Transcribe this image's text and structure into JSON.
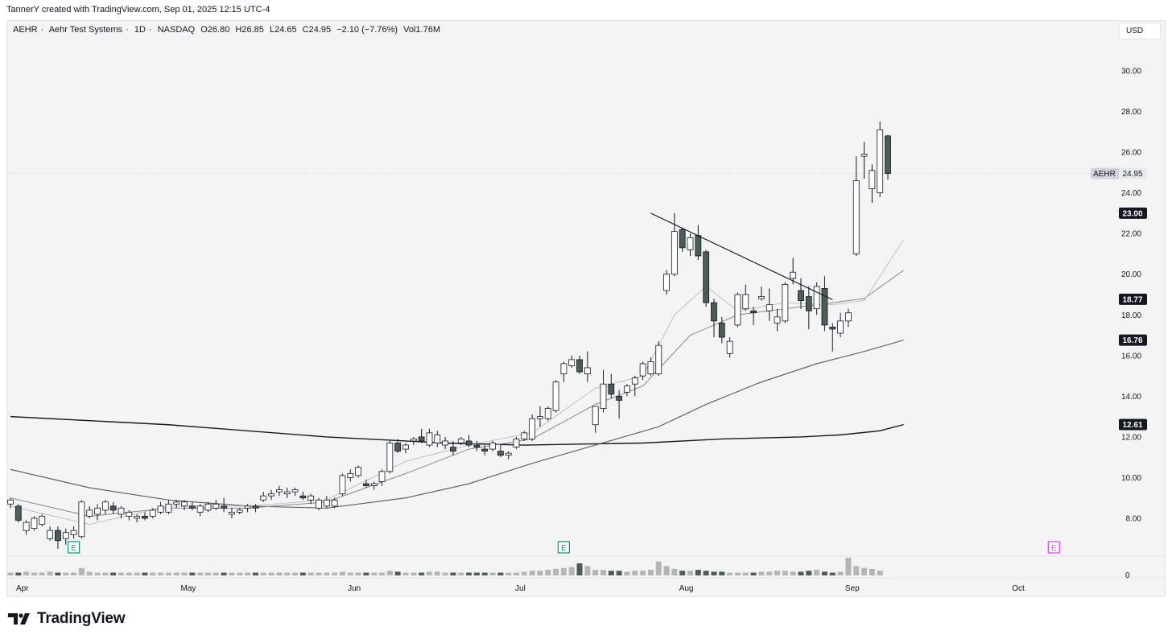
{
  "header": {
    "credit": "TannerY created with TradingView.com, Sep 01, 2025 12:15 UTC-4"
  },
  "legend": {
    "symbol": "AEHR",
    "name": "Aehr Test Systems",
    "timeframe": "1D",
    "exchange": "NASDAQ",
    "open": "O26.80",
    "high": "H26.85",
    "low": "L24.65",
    "close": "C24.95",
    "change": "−2.10 (−7.76%)",
    "volume": "Vol1.76M",
    "separator": "·"
  },
  "currency": "USD",
  "footer": {
    "brand": "TradingView"
  },
  "colors": {
    "up_body": "#ffffff",
    "down_body": "#4a5e57",
    "volume_up": "#b5b5b5",
    "volume_down": "#4a5e57",
    "earnings": "#089981",
    "earnings_future": "#e040fb",
    "ma200": "#131722",
    "ma50": "#555555",
    "ma20": "#888888",
    "ma10": "#bbbbbb"
  },
  "chart_data": {
    "type": "candlestick",
    "symbol": "AEHR",
    "ylim": [
      6.8,
      31.8
    ],
    "y_ticks": [
      "30.00",
      "28.00",
      "26.00",
      "24.00",
      "22.00",
      "20.00",
      "18.00",
      "16.00",
      "14.00",
      "12.00",
      "10.00",
      "8.00"
    ],
    "y_tick_values": [
      30,
      28,
      26,
      24,
      22,
      20,
      18,
      16,
      14,
      12,
      10,
      8
    ],
    "x_ticks": [
      "Apr",
      "May",
      "Jun",
      "Jul",
      "Aug",
      "Sep",
      "Oct"
    ],
    "x_tick_bars": [
      1.5,
      22.5,
      43.5,
      64.5,
      85.5,
      106.5,
      127.5
    ],
    "total_bars": 142,
    "volume_zero_label": "0",
    "last_price_label": {
      "symbol": "AEHR",
      "value": "24.95",
      "price": 24.95
    },
    "ma_price_labels": [
      {
        "text": "23.00",
        "price": 23.0
      },
      {
        "text": "18.77",
        "price": 18.77
      },
      {
        "text": "16.76",
        "price": 16.76
      },
      {
        "text": "12.61",
        "price": 12.61
      }
    ],
    "trendline": {
      "from": {
        "bar": 81,
        "price": 23.0
      },
      "to": {
        "bar": 104,
        "price": 18.75
      }
    },
    "earnings_markers": [
      {
        "bar": 8,
        "label": "E",
        "status": "reported"
      },
      {
        "bar": 70,
        "label": "E",
        "status": "reported"
      },
      {
        "bar": 132,
        "label": "E",
        "status": "upcoming"
      }
    ],
    "candles": [
      {
        "o": 8.7,
        "h": 9.0,
        "l": 8.5,
        "c": 8.9
      },
      {
        "o": 8.6,
        "h": 8.7,
        "l": 7.8,
        "c": 7.9
      },
      {
        "o": 7.4,
        "h": 7.9,
        "l": 7.2,
        "c": 7.8
      },
      {
        "o": 7.5,
        "h": 8.1,
        "l": 7.4,
        "c": 8.0
      },
      {
        "o": 7.7,
        "h": 8.2,
        "l": 7.6,
        "c": 8.1
      },
      {
        "o": 7.0,
        "h": 7.6,
        "l": 6.9,
        "c": 7.4
      },
      {
        "o": 7.4,
        "h": 7.6,
        "l": 6.5,
        "c": 6.9
      },
      {
        "o": 7.0,
        "h": 7.5,
        "l": 6.7,
        "c": 7.3
      },
      {
        "o": 7.2,
        "h": 7.6,
        "l": 7.0,
        "c": 7.4
      },
      {
        "o": 7.1,
        "h": 8.9,
        "l": 7.0,
        "c": 8.8
      },
      {
        "o": 8.1,
        "h": 8.6,
        "l": 8.0,
        "c": 8.4
      },
      {
        "o": 8.2,
        "h": 8.7,
        "l": 7.9,
        "c": 8.5
      },
      {
        "o": 8.4,
        "h": 8.9,
        "l": 8.2,
        "c": 8.8
      },
      {
        "o": 8.6,
        "h": 8.8,
        "l": 8.2,
        "c": 8.4
      },
      {
        "o": 8.2,
        "h": 8.6,
        "l": 8.0,
        "c": 8.5
      },
      {
        "o": 8.1,
        "h": 8.4,
        "l": 7.9,
        "c": 8.3
      },
      {
        "o": 8.0,
        "h": 8.2,
        "l": 7.8,
        "c": 8.1
      },
      {
        "o": 8.1,
        "h": 8.3,
        "l": 7.9,
        "c": 8.0
      },
      {
        "o": 8.1,
        "h": 8.5,
        "l": 8.0,
        "c": 8.4
      },
      {
        "o": 8.3,
        "h": 8.8,
        "l": 8.2,
        "c": 8.6
      },
      {
        "o": 8.3,
        "h": 8.9,
        "l": 8.2,
        "c": 8.7
      },
      {
        "o": 8.7,
        "h": 8.9,
        "l": 8.5,
        "c": 8.8
      },
      {
        "o": 8.6,
        "h": 8.9,
        "l": 8.4,
        "c": 8.8
      },
      {
        "o": 8.6,
        "h": 8.8,
        "l": 8.4,
        "c": 8.5
      },
      {
        "o": 8.3,
        "h": 8.7,
        "l": 8.1,
        "c": 8.6
      },
      {
        "o": 8.4,
        "h": 8.8,
        "l": 8.3,
        "c": 8.7
      },
      {
        "o": 8.5,
        "h": 8.9,
        "l": 8.4,
        "c": 8.7
      },
      {
        "o": 8.6,
        "h": 9.0,
        "l": 8.3,
        "c": 8.5
      },
      {
        "o": 8.2,
        "h": 8.5,
        "l": 8.0,
        "c": 8.3
      },
      {
        "o": 8.3,
        "h": 8.5,
        "l": 8.2,
        "c": 8.4
      },
      {
        "o": 8.5,
        "h": 8.7,
        "l": 8.3,
        "c": 8.6
      },
      {
        "o": 8.6,
        "h": 8.7,
        "l": 8.3,
        "c": 8.5
      },
      {
        "o": 8.9,
        "h": 9.3,
        "l": 8.8,
        "c": 9.1
      },
      {
        "o": 9.1,
        "h": 9.4,
        "l": 8.9,
        "c": 9.2
      },
      {
        "o": 9.3,
        "h": 9.6,
        "l": 9.1,
        "c": 9.4
      },
      {
        "o": 9.2,
        "h": 9.5,
        "l": 9.0,
        "c": 9.3
      },
      {
        "o": 9.3,
        "h": 9.5,
        "l": 9.1,
        "c": 9.4
      },
      {
        "o": 9.1,
        "h": 9.3,
        "l": 8.9,
        "c": 9.0
      },
      {
        "o": 8.9,
        "h": 9.2,
        "l": 8.7,
        "c": 9.1
      },
      {
        "o": 8.5,
        "h": 9.0,
        "l": 8.4,
        "c": 8.9
      },
      {
        "o": 8.6,
        "h": 9.1,
        "l": 8.5,
        "c": 8.9
      },
      {
        "o": 8.6,
        "h": 9.0,
        "l": 8.5,
        "c": 8.9
      },
      {
        "o": 9.2,
        "h": 10.2,
        "l": 9.1,
        "c": 10.1
      },
      {
        "o": 10.0,
        "h": 10.4,
        "l": 9.8,
        "c": 10.2
      },
      {
        "o": 10.1,
        "h": 10.6,
        "l": 10.0,
        "c": 10.5
      },
      {
        "o": 9.7,
        "h": 9.9,
        "l": 9.5,
        "c": 9.6
      },
      {
        "o": 9.6,
        "h": 9.8,
        "l": 9.4,
        "c": 9.7
      },
      {
        "o": 9.8,
        "h": 10.4,
        "l": 9.6,
        "c": 10.3
      },
      {
        "o": 10.3,
        "h": 11.8,
        "l": 10.2,
        "c": 11.7
      },
      {
        "o": 11.7,
        "h": 11.9,
        "l": 11.2,
        "c": 11.3
      },
      {
        "o": 11.4,
        "h": 11.7,
        "l": 11.2,
        "c": 11.6
      },
      {
        "o": 11.8,
        "h": 12.0,
        "l": 11.6,
        "c": 11.9
      },
      {
        "o": 12.0,
        "h": 12.4,
        "l": 11.7,
        "c": 11.8
      },
      {
        "o": 11.6,
        "h": 12.4,
        "l": 11.5,
        "c": 12.2
      },
      {
        "o": 11.7,
        "h": 12.3,
        "l": 11.5,
        "c": 12.1
      },
      {
        "o": 11.6,
        "h": 12.0,
        "l": 11.4,
        "c": 11.8
      },
      {
        "o": 11.5,
        "h": 11.8,
        "l": 11.1,
        "c": 11.3
      },
      {
        "o": 11.7,
        "h": 12.0,
        "l": 11.6,
        "c": 11.9
      },
      {
        "o": 11.8,
        "h": 12.1,
        "l": 11.5,
        "c": 11.6
      },
      {
        "o": 11.6,
        "h": 11.8,
        "l": 11.3,
        "c": 11.5
      },
      {
        "o": 11.4,
        "h": 11.6,
        "l": 11.1,
        "c": 11.3
      },
      {
        "o": 11.4,
        "h": 11.8,
        "l": 11.3,
        "c": 11.7
      },
      {
        "o": 11.3,
        "h": 11.6,
        "l": 11.0,
        "c": 11.1
      },
      {
        "o": 11.1,
        "h": 11.3,
        "l": 10.9,
        "c": 11.2
      },
      {
        "o": 11.5,
        "h": 12.0,
        "l": 11.4,
        "c": 11.9
      },
      {
        "o": 11.9,
        "h": 12.3,
        "l": 11.8,
        "c": 12.2
      },
      {
        "o": 11.9,
        "h": 13.1,
        "l": 11.8,
        "c": 12.9
      },
      {
        "o": 12.9,
        "h": 13.5,
        "l": 12.5,
        "c": 13.0
      },
      {
        "o": 12.9,
        "h": 13.5,
        "l": 12.8,
        "c": 13.4
      },
      {
        "o": 13.3,
        "h": 14.8,
        "l": 13.2,
        "c": 14.7
      },
      {
        "o": 15.1,
        "h": 15.7,
        "l": 14.7,
        "c": 15.6
      },
      {
        "o": 15.5,
        "h": 16.0,
        "l": 15.4,
        "c": 15.8
      },
      {
        "o": 15.8,
        "h": 16.0,
        "l": 15.1,
        "c": 15.2
      },
      {
        "o": 15.1,
        "h": 16.2,
        "l": 14.7,
        "c": 15.4
      },
      {
        "o": 12.6,
        "h": 13.5,
        "l": 12.2,
        "c": 13.5
      },
      {
        "o": 13.4,
        "h": 15.3,
        "l": 13.2,
        "c": 14.6
      },
      {
        "o": 14.6,
        "h": 15.1,
        "l": 13.9,
        "c": 14.1
      },
      {
        "o": 14.0,
        "h": 14.3,
        "l": 12.9,
        "c": 13.8
      },
      {
        "o": 14.2,
        "h": 14.6,
        "l": 14.0,
        "c": 14.5
      },
      {
        "o": 14.6,
        "h": 15.0,
        "l": 14.0,
        "c": 14.9
      },
      {
        "o": 15.0,
        "h": 15.7,
        "l": 14.8,
        "c": 15.6
      },
      {
        "o": 15.1,
        "h": 15.9,
        "l": 15.0,
        "c": 15.7
      },
      {
        "o": 15.1,
        "h": 16.7,
        "l": 15.0,
        "c": 16.5
      },
      {
        "o": 19.2,
        "h": 20.2,
        "l": 19.0,
        "c": 20.0
      },
      {
        "o": 20.0,
        "h": 23.0,
        "l": 19.9,
        "c": 22.1
      },
      {
        "o": 22.2,
        "h": 22.3,
        "l": 21.1,
        "c": 21.3
      },
      {
        "o": 21.2,
        "h": 22.0,
        "l": 20.9,
        "c": 21.8
      },
      {
        "o": 21.9,
        "h": 22.4,
        "l": 20.7,
        "c": 20.9
      },
      {
        "o": 21.1,
        "h": 21.2,
        "l": 18.4,
        "c": 18.6
      },
      {
        "o": 18.6,
        "h": 18.8,
        "l": 16.9,
        "c": 17.7
      },
      {
        "o": 17.6,
        "h": 17.9,
        "l": 16.6,
        "c": 16.9
      },
      {
        "o": 16.1,
        "h": 16.9,
        "l": 15.9,
        "c": 16.7
      },
      {
        "o": 17.5,
        "h": 19.1,
        "l": 17.4,
        "c": 19.0
      },
      {
        "o": 18.3,
        "h": 19.5,
        "l": 18.2,
        "c": 19.0
      },
      {
        "o": 18.2,
        "h": 18.4,
        "l": 17.5,
        "c": 18.1
      },
      {
        "o": 18.8,
        "h": 19.4,
        "l": 18.7,
        "c": 18.9
      },
      {
        "o": 18.2,
        "h": 19.3,
        "l": 17.7,
        "c": 18.5
      },
      {
        "o": 17.6,
        "h": 18.3,
        "l": 17.2,
        "c": 17.9
      },
      {
        "o": 17.7,
        "h": 19.6,
        "l": 17.6,
        "c": 19.5
      },
      {
        "o": 19.8,
        "h": 20.8,
        "l": 19.5,
        "c": 20.1
      },
      {
        "o": 19.2,
        "h": 19.8,
        "l": 18.3,
        "c": 18.7
      },
      {
        "o": 18.9,
        "h": 19.4,
        "l": 17.3,
        "c": 18.2
      },
      {
        "o": 18.3,
        "h": 19.6,
        "l": 18.0,
        "c": 19.4
      },
      {
        "o": 19.3,
        "h": 19.9,
        "l": 17.2,
        "c": 17.5
      },
      {
        "o": 17.4,
        "h": 17.6,
        "l": 16.2,
        "c": 17.3
      },
      {
        "o": 17.1,
        "h": 18.1,
        "l": 16.9,
        "c": 17.7
      },
      {
        "o": 17.7,
        "h": 18.3,
        "l": 17.4,
        "c": 18.1
      },
      {
        "o": 21.0,
        "h": 25.8,
        "l": 20.9,
        "c": 24.6
      },
      {
        "o": 25.8,
        "h": 26.5,
        "l": 24.7,
        "c": 25.9
      },
      {
        "o": 24.2,
        "h": 25.4,
        "l": 23.5,
        "c": 25.1
      },
      {
        "o": 24.0,
        "h": 27.5,
        "l": 23.8,
        "c": 27.1
      },
      {
        "o": 26.8,
        "h": 26.85,
        "l": 24.65,
        "c": 24.95
      }
    ],
    "volumes": [
      0.3,
      0.3,
      0.4,
      0.3,
      0.3,
      0.4,
      0.3,
      0.3,
      0.3,
      0.8,
      0.4,
      0.3,
      0.3,
      0.3,
      0.3,
      0.3,
      0.3,
      0.3,
      0.3,
      0.3,
      0.3,
      0.3,
      0.3,
      0.3,
      0.3,
      0.3,
      0.3,
      0.3,
      0.3,
      0.3,
      0.3,
      0.3,
      0.3,
      0.3,
      0.3,
      0.3,
      0.3,
      0.3,
      0.3,
      0.3,
      0.3,
      0.3,
      0.4,
      0.3,
      0.3,
      0.3,
      0.3,
      0.3,
      0.5,
      0.4,
      0.3,
      0.3,
      0.3,
      0.4,
      0.4,
      0.3,
      0.3,
      0.3,
      0.3,
      0.3,
      0.3,
      0.3,
      0.3,
      0.3,
      0.3,
      0.4,
      0.5,
      0.5,
      0.6,
      0.7,
      0.8,
      0.9,
      1.3,
      1.0,
      0.6,
      0.6,
      0.5,
      0.5,
      0.4,
      0.5,
      0.5,
      0.6,
      1.5,
      1.0,
      0.7,
      0.5,
      0.5,
      0.6,
      0.5,
      0.4,
      0.4,
      0.3,
      0.3,
      0.3,
      0.3,
      0.4,
      0.4,
      0.5,
      0.5,
      0.4,
      0.4,
      0.5,
      0.6,
      0.4,
      0.3,
      0.4,
      1.9,
      1.0,
      0.8,
      0.7,
      0.5
    ],
    "moving_averages": [
      {
        "period": 200,
        "values": [
          [
            0,
            13.0
          ],
          [
            20,
            12.6
          ],
          [
            40,
            12.0
          ],
          [
            55,
            11.7
          ],
          [
            65,
            11.6
          ],
          [
            80,
            11.7
          ],
          [
            90,
            11.9
          ],
          [
            100,
            12.0
          ],
          [
            105,
            12.1
          ],
          [
            110,
            12.3
          ],
          [
            113,
            12.61
          ]
        ]
      },
      {
        "period": 50,
        "values": [
          [
            0,
            10.4
          ],
          [
            10,
            9.5
          ],
          [
            20,
            8.9
          ],
          [
            30,
            8.6
          ],
          [
            40,
            8.5
          ],
          [
            50,
            9.0
          ],
          [
            58,
            9.7
          ],
          [
            66,
            10.7
          ],
          [
            74,
            11.6
          ],
          [
            82,
            12.5
          ],
          [
            88,
            13.6
          ],
          [
            95,
            14.7
          ],
          [
            102,
            15.6
          ],
          [
            108,
            16.2
          ],
          [
            113,
            16.76
          ]
        ]
      },
      {
        "period": 20,
        "values": [
          [
            0,
            9.0
          ],
          [
            10,
            8.1
          ],
          [
            20,
            8.5
          ],
          [
            30,
            8.5
          ],
          [
            40,
            8.8
          ],
          [
            50,
            10.2
          ],
          [
            58,
            11.4
          ],
          [
            66,
            11.9
          ],
          [
            74,
            13.6
          ],
          [
            80,
            14.5
          ],
          [
            86,
            17.0
          ],
          [
            92,
            18.0
          ],
          [
            98,
            18.3
          ],
          [
            104,
            18.6
          ],
          [
            108,
            18.8
          ],
          [
            113,
            20.2
          ]
        ]
      },
      {
        "period": 10,
        "values": [
          [
            0,
            8.6
          ],
          [
            10,
            7.7
          ],
          [
            20,
            8.6
          ],
          [
            30,
            8.6
          ],
          [
            40,
            8.9
          ],
          [
            50,
            10.8
          ],
          [
            58,
            11.6
          ],
          [
            66,
            12.2
          ],
          [
            74,
            14.4
          ],
          [
            80,
            15.0
          ],
          [
            84,
            18.0
          ],
          [
            88,
            19.4
          ],
          [
            92,
            18.2
          ],
          [
            98,
            18.6
          ],
          [
            104,
            18.5
          ],
          [
            108,
            18.7
          ],
          [
            113,
            21.7
          ]
        ]
      }
    ]
  }
}
